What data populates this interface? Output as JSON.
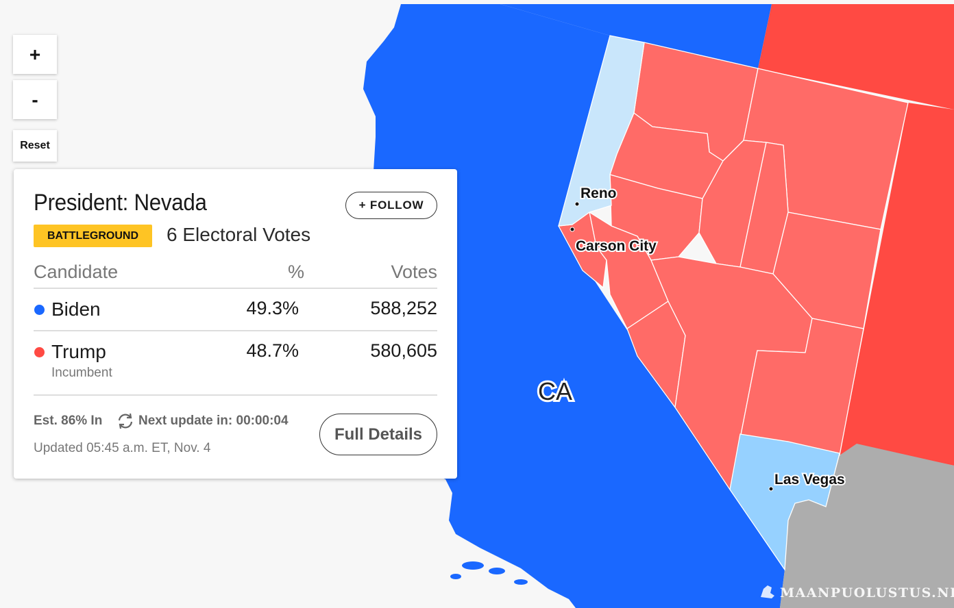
{
  "map": {
    "state_label": "CA",
    "cities": [
      {
        "name": "Reno"
      },
      {
        "name": "Carson City"
      },
      {
        "name": "Las Vegas"
      }
    ],
    "colors": {
      "dem_solid": "#1a68ff",
      "dem_light": "#c9e6fb",
      "dem_mid": "#96d1ff",
      "rep_solid": "#ff4a43",
      "rep_county": "#ff6b67",
      "no_data": "#adadad",
      "water": "#f7f7f7"
    },
    "watermark": "MAANPUOLUSTUS.NET"
  },
  "controls": {
    "zoom_in": "+",
    "zoom_out": "-",
    "reset": "Reset"
  },
  "card": {
    "title": "President: Nevada",
    "follow": "+ FOLLOW",
    "badge": "BATTLEGROUND",
    "electoral_votes": "6 Electoral Votes",
    "headers": {
      "candidate": "Candidate",
      "pct": "%",
      "votes": "Votes"
    },
    "candidates": [
      {
        "name": "Biden",
        "pct": "49.3%",
        "votes": "588,252",
        "color": "#1a68ff",
        "note": ""
      },
      {
        "name": "Trump",
        "pct": "48.7%",
        "votes": "580,605",
        "color": "#ff4a43",
        "note": "Incumbent"
      }
    ],
    "est_in": "Est. 86% In",
    "next_update": "Next update in: 00:00:04",
    "updated": "Updated 05:45 a.m. ET, Nov. 4",
    "full_details": "Full Details"
  }
}
